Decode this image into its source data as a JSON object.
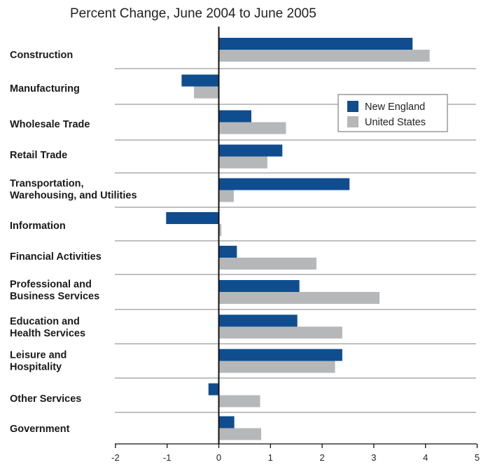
{
  "chart_data": {
    "type": "bar",
    "orientation": "horizontal",
    "title": "Percent Change, June 2004 to June 2005",
    "categories": [
      [
        "Construction"
      ],
      [
        "Manufacturing"
      ],
      [
        "Wholesale Trade"
      ],
      [
        "Retail Trade"
      ],
      [
        "Transportation,",
        "Warehousing, and Utilities"
      ],
      [
        "Information"
      ],
      [
        "Financial Activities"
      ],
      [
        "Professional and",
        "Business Services"
      ],
      [
        "Education and",
        "Health Services"
      ],
      [
        "Leisure and",
        "Hospitality"
      ],
      [
        "Other Services"
      ],
      [
        "Government"
      ]
    ],
    "series": [
      {
        "name": "New England",
        "color": "#0f4d8f",
        "values": [
          3.75,
          -0.72,
          0.63,
          1.23,
          2.53,
          -1.02,
          0.35,
          1.56,
          1.52,
          2.39,
          -0.2,
          0.3
        ]
      },
      {
        "name": "United States",
        "color": "#b6b7b9",
        "values": [
          4.08,
          -0.48,
          1.3,
          0.94,
          0.29,
          0.05,
          1.89,
          3.11,
          2.39,
          2.25,
          0.8,
          0.82
        ]
      }
    ],
    "xlim": [
      -2,
      5
    ],
    "xticks": [
      -2,
      -1,
      0,
      1,
      2,
      3,
      4,
      5
    ],
    "grid": false,
    "separators": true,
    "legend": "top-right"
  }
}
